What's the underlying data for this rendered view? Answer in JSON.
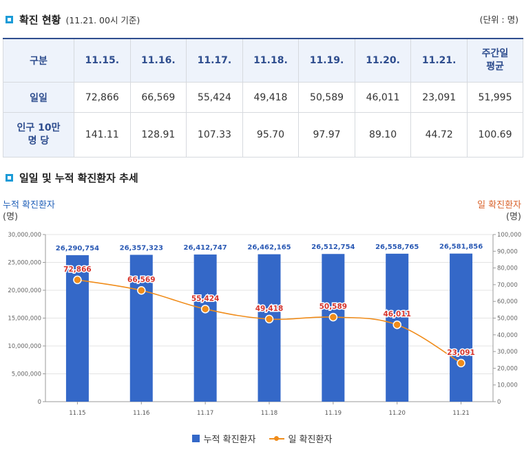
{
  "section1": {
    "title": "확진 현황",
    "note": "(11.21. 00시 기준)",
    "unit": "(단위 : 명)"
  },
  "table": {
    "headers": [
      "구분",
      "11.15.",
      "11.16.",
      "11.17.",
      "11.18.",
      "11.19.",
      "11.20.",
      "11.21.",
      "주간일 평균"
    ],
    "rows": [
      {
        "label": "일일",
        "cells": [
          "72,866",
          "66,569",
          "55,424",
          "49,418",
          "50,589",
          "46,011",
          "23,091",
          "51,995"
        ]
      },
      {
        "label": "인구 10만 명 당",
        "cells": [
          "141.11",
          "128.91",
          "107.33",
          "95.70",
          "97.97",
          "89.10",
          "44.72",
          "100.69"
        ]
      }
    ]
  },
  "section2": {
    "title": "일일 및 누적 확진환자 추세"
  },
  "chart_data": {
    "type": "bar",
    "categories": [
      "11.15",
      "11.16",
      "11.17",
      "11.18",
      "11.19",
      "11.20",
      "11.21"
    ],
    "series": [
      {
        "name": "누적 확진환자",
        "type": "bar",
        "axis": "left",
        "color": "#3468c8",
        "values": [
          26290754,
          26357323,
          26412747,
          26462165,
          26512754,
          26558765,
          26581856
        ],
        "labels": [
          "26,290,754",
          "26,357,323",
          "26,412,747",
          "26,462,165",
          "26,512,754",
          "26,558,765",
          "26,581,856"
        ]
      },
      {
        "name": "일 확진환자",
        "type": "line",
        "axis": "right",
        "color": "#f08c1a",
        "values": [
          72866,
          66569,
          55424,
          49418,
          50589,
          46011,
          23091
        ],
        "labels": [
          "72,866",
          "66,569",
          "55,424",
          "49,418",
          "50,589",
          "46,011",
          "23,091"
        ]
      }
    ],
    "y_left": {
      "title": "누적 확진환자",
      "unit": "(명)",
      "range": [
        0,
        30000000
      ],
      "ticks": [
        "0",
        "5,000,000",
        "10,000,000",
        "15,000,000",
        "20,000,000",
        "25,000,000",
        "30,000,000"
      ]
    },
    "y_right": {
      "title": "일 확진환자",
      "unit": "(명)",
      "range": [
        0,
        100000
      ],
      "ticks": [
        "0",
        "10,000",
        "20,000",
        "30,000",
        "40,000",
        "50,000",
        "60,000",
        "70,000",
        "80,000",
        "90,000",
        "100,000"
      ]
    },
    "grid": true,
    "legend": "bottom-center"
  }
}
